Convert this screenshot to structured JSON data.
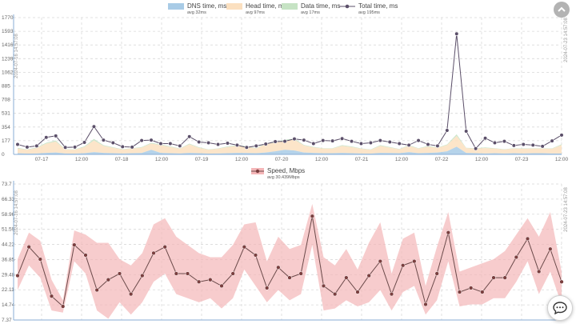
{
  "colors": {
    "dns": "#a8cbe6",
    "head": "#fbe0c0",
    "data": "#c6e3c4",
    "total": "#5b4f69",
    "speed_band": "#f4b6b8",
    "speed_line": "#6b4a4a",
    "grid": "#d9d9d9",
    "axis": "#8aaed4",
    "tick_text": "#666666"
  },
  "icons": {
    "scroll_top": "chevron-up-icon",
    "chat": "chat-bubble-icon"
  },
  "chart_data": [
    {
      "type": "line",
      "title": "",
      "ylim": [
        0,
        1770
      ],
      "y_ticks": [
        "0",
        "177",
        "354",
        "531",
        "708",
        "885",
        "1062",
        "1239",
        "1416",
        "1593",
        "1770"
      ],
      "x_ticks": [
        "07-17",
        "12:00",
        "07-18",
        "12:00",
        "07-19",
        "12:00",
        "07-20",
        "12:00",
        "07-21",
        "12:00",
        "07-22",
        "12:00",
        "07-23",
        "12:00"
      ],
      "side_label_left": "2024-07-16 14:57:08",
      "side_label_right": "2024-07-23 14:57:08",
      "legend": [
        {
          "name": "DNS time, ms",
          "sub": "avg 32ms",
          "kind": "area",
          "color_key": "dns"
        },
        {
          "name": "Head time, ms",
          "sub": "avg 97ms",
          "kind": "area",
          "color_key": "head"
        },
        {
          "name": "Data time, ms",
          "sub": "avg 17ms",
          "kind": "area",
          "color_key": "data"
        },
        {
          "name": "Total time, ms",
          "sub": "avg 195ms",
          "kind": "line",
          "color_key": "total"
        }
      ],
      "series": [
        {
          "name": "DNS time, ms",
          "values": [
            15,
            10,
            12,
            20,
            25,
            12,
            10,
            15,
            30,
            20,
            15,
            12,
            15,
            18,
            60,
            20,
            15,
            12,
            20,
            15,
            10,
            12,
            15,
            20,
            18,
            15,
            25,
            40,
            60,
            50,
            25,
            20,
            15,
            15,
            20,
            15,
            12,
            10,
            20,
            18,
            15,
            30,
            15,
            20,
            25,
            40,
            100,
            20,
            15,
            12,
            15,
            12,
            15,
            12,
            15,
            15,
            12,
            12
          ]
        },
        {
          "name": "Head time, ms",
          "values": [
            60,
            50,
            70,
            120,
            140,
            50,
            50,
            80,
            150,
            90,
            70,
            50,
            60,
            70,
            80,
            100,
            80,
            60,
            110,
            70,
            50,
            60,
            80,
            90,
            80,
            60,
            110,
            110,
            120,
            140,
            90,
            70,
            60,
            60,
            90,
            80,
            60,
            50,
            90,
            70,
            50,
            80,
            60,
            80,
            60,
            80,
            140,
            60,
            60,
            70,
            60,
            50,
            60,
            60,
            60,
            60,
            60,
            110
          ]
        },
        {
          "name": "Data time, ms",
          "values": [
            10,
            5,
            8,
            12,
            15,
            5,
            5,
            10,
            20,
            10,
            8,
            5,
            5,
            8,
            10,
            10,
            8,
            5,
            10,
            8,
            5,
            5,
            8,
            10,
            8,
            5,
            10,
            10,
            12,
            15,
            8,
            8,
            5,
            5,
            10,
            8,
            5,
            5,
            10,
            8,
            5,
            10,
            5,
            10,
            5,
            10,
            20,
            5,
            5,
            8,
            5,
            5,
            5,
            5,
            5,
            5,
            5,
            10
          ]
        },
        {
          "name": "Total time, ms",
          "values": [
            130,
            95,
            110,
            220,
            240,
            90,
            95,
            155,
            360,
            185,
            150,
            100,
            95,
            180,
            185,
            140,
            140,
            110,
            230,
            160,
            150,
            130,
            145,
            120,
            90,
            110,
            135,
            165,
            170,
            200,
            185,
            140,
            180,
            175,
            205,
            170,
            140,
            150,
            180,
            160,
            140,
            120,
            180,
            130,
            110,
            310,
            1560,
            300,
            75,
            210,
            150,
            170,
            115,
            130,
            120,
            105,
            175,
            250
          ]
        }
      ]
    },
    {
      "type": "line",
      "title": "",
      "ylim": [
        7.37,
        73.7
      ],
      "y_ticks": [
        "7.37",
        "14.74",
        "22.11",
        "29.48",
        "36.85",
        "44.22",
        "51.59",
        "58.96",
        "66.33",
        "73.7"
      ],
      "side_label_left": "2024-07-16 14:57:08",
      "side_label_right": "2024-07-23 14:57:08",
      "legend": [
        {
          "name": "Speed, Mbps",
          "sub": "avg 30.439Mbps",
          "kind": "band-line",
          "color_key": "speed_band"
        }
      ],
      "series": [
        {
          "name": "Speed, Mbps",
          "values": [
            29,
            43,
            37,
            19,
            14,
            44,
            39,
            22,
            27,
            30,
            20,
            29,
            40,
            43,
            30,
            30,
            26,
            27,
            24,
            30,
            43,
            39,
            23,
            33,
            28,
            30,
            58,
            24,
            20,
            28,
            21,
            29,
            36,
            20,
            34,
            36,
            15,
            30,
            50,
            21,
            23,
            21,
            28,
            28,
            38,
            47,
            31,
            42,
            26
          ],
          "low": [
            22,
            34,
            28,
            12,
            11,
            36,
            30,
            12,
            8,
            16,
            10,
            16,
            26,
            30,
            20,
            18,
            16,
            18,
            13,
            18,
            32,
            24,
            16,
            22,
            17,
            20,
            44,
            12,
            13,
            17,
            14,
            16,
            22,
            12,
            21,
            24,
            10,
            17,
            36,
            14,
            15,
            15,
            18,
            18,
            26,
            36,
            20,
            31,
            15
          ],
          "high": [
            37,
            50,
            46,
            27,
            17,
            51,
            49,
            45,
            45,
            37,
            34,
            40,
            54,
            57,
            48,
            44,
            40,
            38,
            38,
            44,
            54,
            55,
            36,
            48,
            42,
            44,
            64,
            38,
            34,
            42,
            32,
            45,
            55,
            30,
            47,
            50,
            24,
            43,
            60,
            31,
            33,
            35,
            37,
            41,
            49,
            57,
            48,
            60,
            31
          ]
        }
      ]
    }
  ]
}
